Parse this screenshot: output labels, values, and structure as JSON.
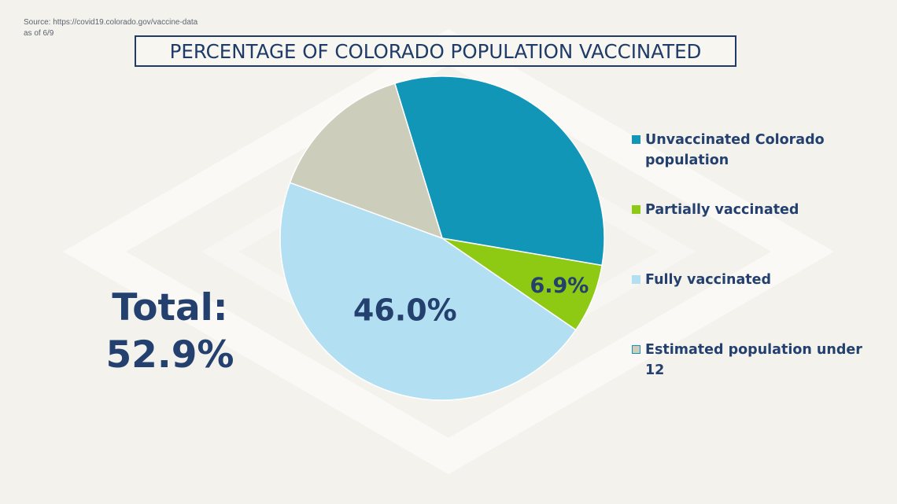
{
  "source": {
    "line1": "Source: https://covid19.colorado.gov/vaccine-data",
    "line2": "as of 6/9"
  },
  "total": {
    "line1": "Total:",
    "line2": "52.9%"
  },
  "chart_data": {
    "type": "pie",
    "title": "PERCENTAGE OF COLORADO POPULATION VACCINATED",
    "start_angle_deg": -107,
    "direction": "clockwise",
    "slices": [
      {
        "name": "Unvaccinated Colorado population",
        "value": 32.4,
        "color": "#1296b8",
        "label": ""
      },
      {
        "name": "Partially vaccinated",
        "value": 6.9,
        "color": "#8ec914",
        "label": "6.9%"
      },
      {
        "name": "Fully vaccinated",
        "value": 46.0,
        "color": "#b2e0f2",
        "label": "46.0%"
      },
      {
        "name": "Estimated population under 12",
        "value": 14.7,
        "color": "#cdcdbc",
        "label": ""
      }
    ],
    "legend_position": "right"
  },
  "colors": {
    "text": "#24406e",
    "background": "#f4f2ec"
  }
}
